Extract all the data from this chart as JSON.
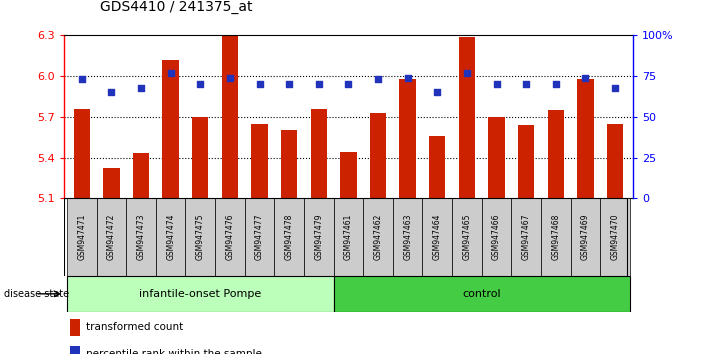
{
  "title": "GDS4410 / 241375_at",
  "samples": [
    "GSM947471",
    "GSM947472",
    "GSM947473",
    "GSM947474",
    "GSM947475",
    "GSM947476",
    "GSM947477",
    "GSM947478",
    "GSM947479",
    "GSM947461",
    "GSM947462",
    "GSM947463",
    "GSM947464",
    "GSM947465",
    "GSM947466",
    "GSM947467",
    "GSM947468",
    "GSM947469",
    "GSM947470"
  ],
  "bar_values": [
    5.76,
    5.32,
    5.43,
    6.12,
    5.7,
    6.3,
    5.65,
    5.6,
    5.76,
    5.44,
    5.73,
    5.98,
    5.56,
    6.29,
    5.7,
    5.64,
    5.75,
    5.98,
    5.65
  ],
  "percentile_rank": [
    73,
    65,
    68,
    77,
    70,
    74,
    70,
    70,
    70,
    70,
    73,
    74,
    65,
    77,
    70,
    70,
    70,
    74,
    68
  ],
  "ylim_left": [
    5.1,
    6.3
  ],
  "ylim_right": [
    0,
    100
  ],
  "yticks_left": [
    5.1,
    5.4,
    5.7,
    6.0,
    6.3
  ],
  "yticks_right": [
    0,
    25,
    50,
    75,
    100
  ],
  "ytick_labels_right": [
    "0",
    "25",
    "50",
    "75",
    "100%"
  ],
  "bar_color": "#cc2200",
  "dot_color": "#2233bb",
  "background_color": "#ffffff",
  "tick_label_area_color": "#c8c8c8",
  "group1_label": "infantile-onset Pompe",
  "group2_label": "control",
  "group1_color": "#bbffbb",
  "group2_color": "#44cc44",
  "group1_count": 9,
  "group2_count": 10,
  "disease_state_label": "disease state",
  "legend_bar_label": "transformed count",
  "legend_dot_label": "percentile rank within the sample",
  "base_value": 5.1
}
